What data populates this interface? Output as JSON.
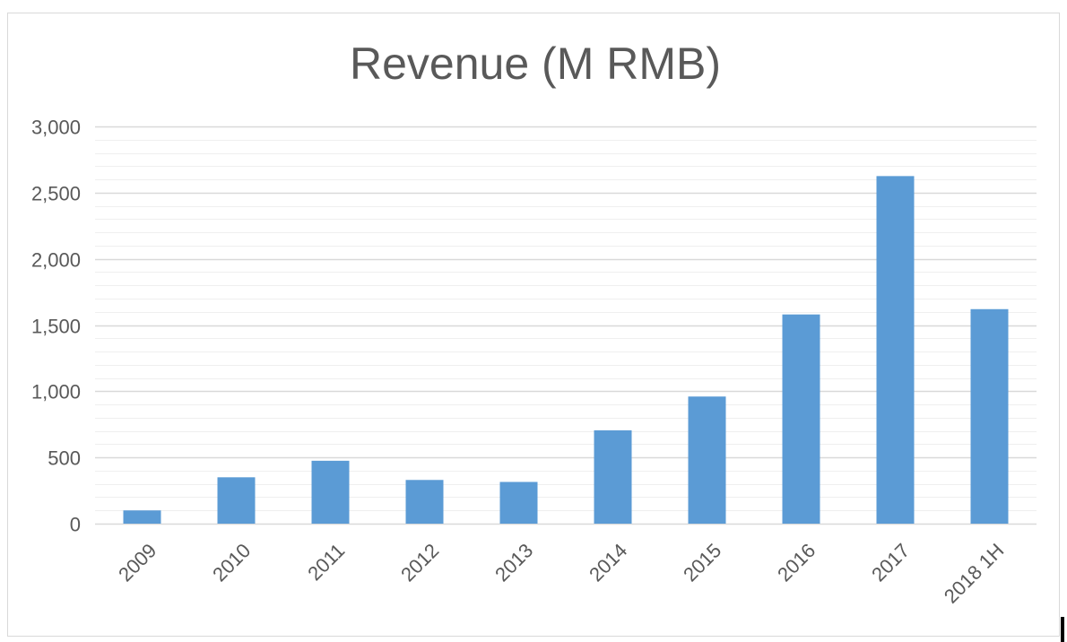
{
  "chart_data": {
    "type": "bar",
    "title": "Revenue (M RMB)",
    "xlabel": "",
    "ylabel": "",
    "categories": [
      "2009",
      "2010",
      "2011",
      "2012",
      "2013",
      "2014",
      "2015",
      "2016",
      "2017",
      "2018 1H"
    ],
    "values": [
      100,
      350,
      475,
      330,
      315,
      705,
      960,
      1580,
      2625,
      1620
    ],
    "ylim": [
      0,
      3000
    ],
    "yticks": [
      0,
      500,
      1000,
      1500,
      2000,
      2500,
      3000
    ],
    "ytick_labels": [
      "0",
      "500",
      "1,000",
      "1,500",
      "2,000",
      "2,500",
      "3,000"
    ],
    "minor_grid_step": 100,
    "grid": true,
    "legend": "none",
    "colors": {
      "bar": "#5b9bd5",
      "major_grid": "#d9d9d9",
      "minor_grid": "#efefef",
      "text": "#595959"
    }
  }
}
